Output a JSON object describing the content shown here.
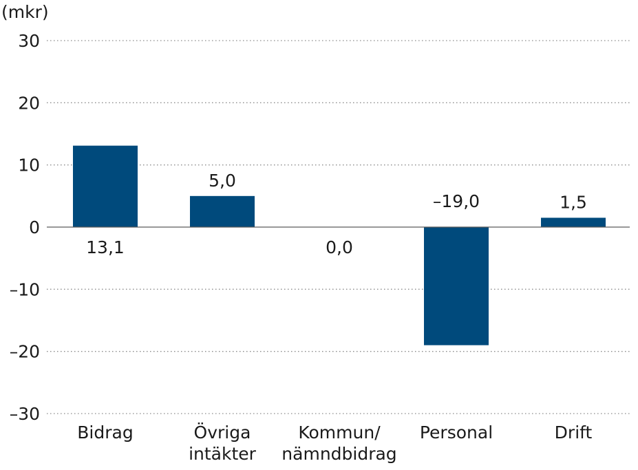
{
  "chart_data": {
    "type": "bar",
    "ylabel": "(mkr)",
    "ylim": [
      -30,
      30
    ],
    "yticks": [
      30,
      20,
      10,
      0,
      -10,
      -20,
      -30
    ],
    "ytick_labels": [
      "30",
      "20",
      "10",
      "0",
      "–10",
      "–20",
      "–30"
    ],
    "categories": [
      [
        "Bidrag"
      ],
      [
        "Övriga",
        "intäkter"
      ],
      [
        "Kommun/",
        "nämndbidrag"
      ],
      [
        "Personal"
      ],
      [
        "Drift"
      ]
    ],
    "values": [
      13.1,
      5.0,
      0.0,
      -19.0,
      1.5
    ],
    "data_labels": [
      "13,1",
      "5,0",
      "0,0",
      "–19,0",
      "1,5"
    ],
    "grid": true,
    "bar_color": "#004a7c"
  }
}
